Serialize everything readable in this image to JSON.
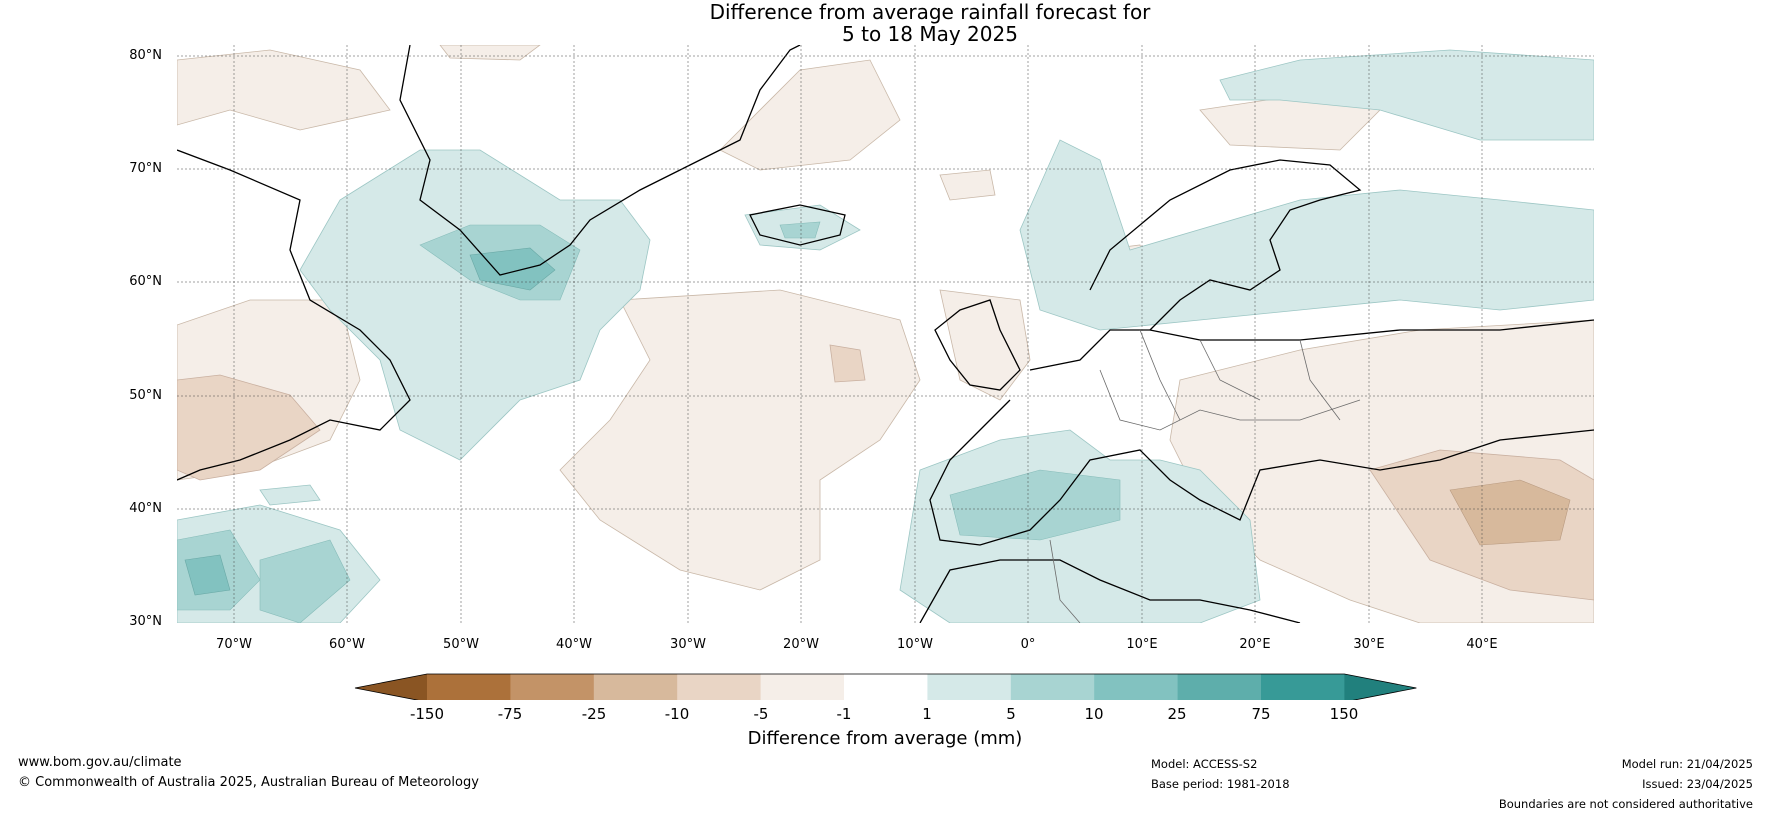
{
  "title_line1": "Difference from average rainfall forecast for",
  "title_line2": "5 to 18 May 2025",
  "lat_labels": [
    "80°N",
    "70°N",
    "60°N",
    "50°N",
    "40°N",
    "30°N"
  ],
  "lon_labels": [
    "70°W",
    "60°W",
    "50°W",
    "40°W",
    "30°W",
    "20°W",
    "10°W",
    "0°",
    "10°E",
    "20°E",
    "30°E",
    "40°E"
  ],
  "colorbar": {
    "title": "Difference from average (mm)",
    "boundaries": [
      "-150",
      "-75",
      "-25",
      "-10",
      "-5",
      "-1",
      "1",
      "5",
      "10",
      "25",
      "75",
      "150"
    ],
    "colors": [
      "#8a5523",
      "#ac713a",
      "#c39367",
      "#d7b99c",
      "#e9d5c5",
      "#f5eee8",
      "#ffffff",
      "#d5e9e8",
      "#a8d4d2",
      "#82c2c0",
      "#5eaeab",
      "#379a97",
      "#21807d"
    ]
  },
  "footer": {
    "website": "www.bom.gov.au/climate",
    "copyright": "© Commonwealth of Australia 2025, Australian Bureau of Meteorology",
    "model": "Model: ACCESS-S2",
    "base_period": "Base period: 1981-2018",
    "model_run": "Model run: 21/04/2025",
    "issued": "Issued: 23/04/2025",
    "disclaimer": "Boundaries are not considered authoritative"
  }
}
